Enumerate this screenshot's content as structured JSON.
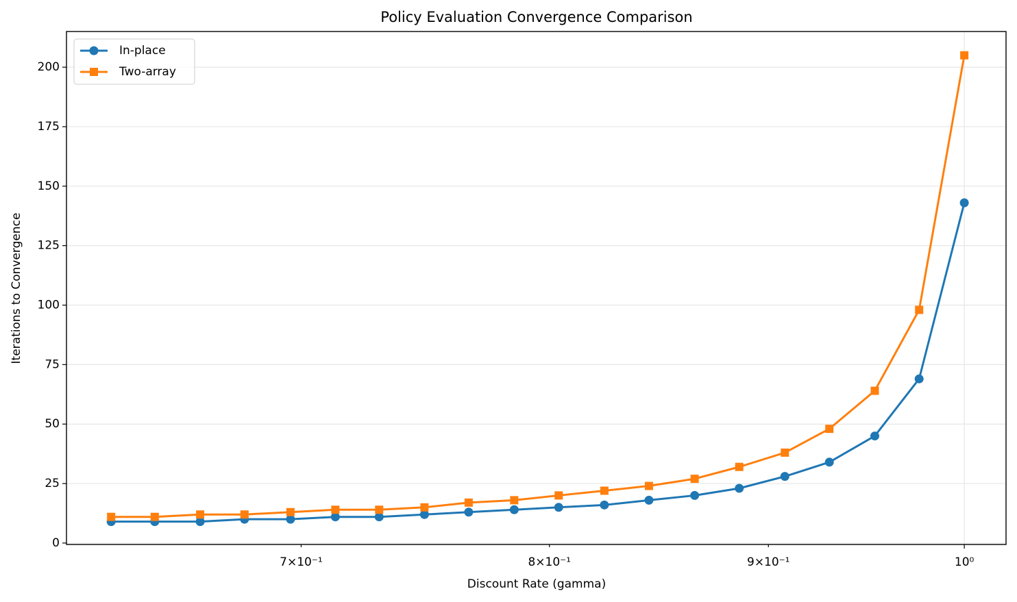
{
  "chart_data": {
    "type": "line",
    "title": "Policy Evaluation Convergence Comparison",
    "x_label": "Discount Rate (gamma)",
    "y_label": "Iterations to Convergence",
    "x": [
      0.632,
      0.647,
      0.663,
      0.679,
      0.696,
      0.713,
      0.73,
      0.748,
      0.766,
      0.785,
      0.804,
      0.824,
      0.844,
      0.865,
      0.886,
      0.908,
      0.93,
      0.953,
      0.976,
      1.0
    ],
    "series": [
      {
        "name": "In-place",
        "color": "#1f77b4",
        "marker": "circle",
        "values": [
          9,
          9,
          9,
          10,
          10,
          11,
          11,
          12,
          13,
          14,
          15,
          16,
          18,
          20,
          23,
          28,
          34,
          45,
          69,
          143
        ]
      },
      {
        "name": "Two-array",
        "color": "#ff7f0e",
        "marker": "square",
        "values": [
          11,
          11,
          12,
          12,
          13,
          14,
          14,
          15,
          17,
          18,
          20,
          22,
          24,
          27,
          32,
          38,
          48,
          64,
          98,
          205
        ]
      }
    ],
    "xscale": "log",
    "xlim": [
      0.617,
      1.0227
    ],
    "xticks": [
      {
        "value": 0.7,
        "label": "7×10⁻¹"
      },
      {
        "value": 0.8,
        "label": "8×10⁻¹"
      },
      {
        "value": 0.9,
        "label": "9×10⁻¹"
      },
      {
        "value": 1.0,
        "label": "10⁰"
      }
    ],
    "ylim": [
      -0.6,
      215
    ],
    "yticks": [
      0,
      25,
      50,
      75,
      100,
      125,
      150,
      175,
      200
    ],
    "grid": true,
    "legend": "upper left"
  }
}
